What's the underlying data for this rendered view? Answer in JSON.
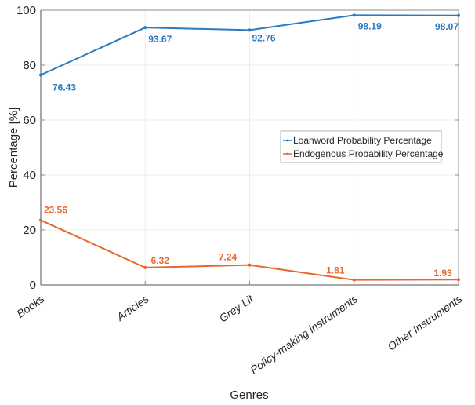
{
  "chart_data": {
    "type": "line",
    "title": "",
    "xlabel": "Genres",
    "ylabel": "Percentage [%]",
    "categories": [
      "Books",
      "Articles",
      "Grey Lit",
      "Policy-making instruments",
      "Other Instruments"
    ],
    "ylim": [
      0,
      100
    ],
    "yticks": [
      0,
      20,
      40,
      60,
      80,
      100
    ],
    "grid": true,
    "legend_position": "center-right",
    "series": [
      {
        "name": "Loanword Probability Percentage",
        "color": "#2a7ac1",
        "values": [
          76.43,
          93.67,
          92.76,
          98.19,
          98.07
        ],
        "labels": [
          "76.43",
          "93.67",
          "92.76",
          "98.19",
          "98.07"
        ]
      },
      {
        "name": "Endogenous Probability Percentage",
        "color": "#e8672a",
        "values": [
          23.56,
          6.32,
          7.24,
          1.81,
          1.93
        ],
        "labels": [
          "23.56",
          "6.32",
          "7.24",
          "1.81",
          "1.93"
        ]
      }
    ]
  }
}
